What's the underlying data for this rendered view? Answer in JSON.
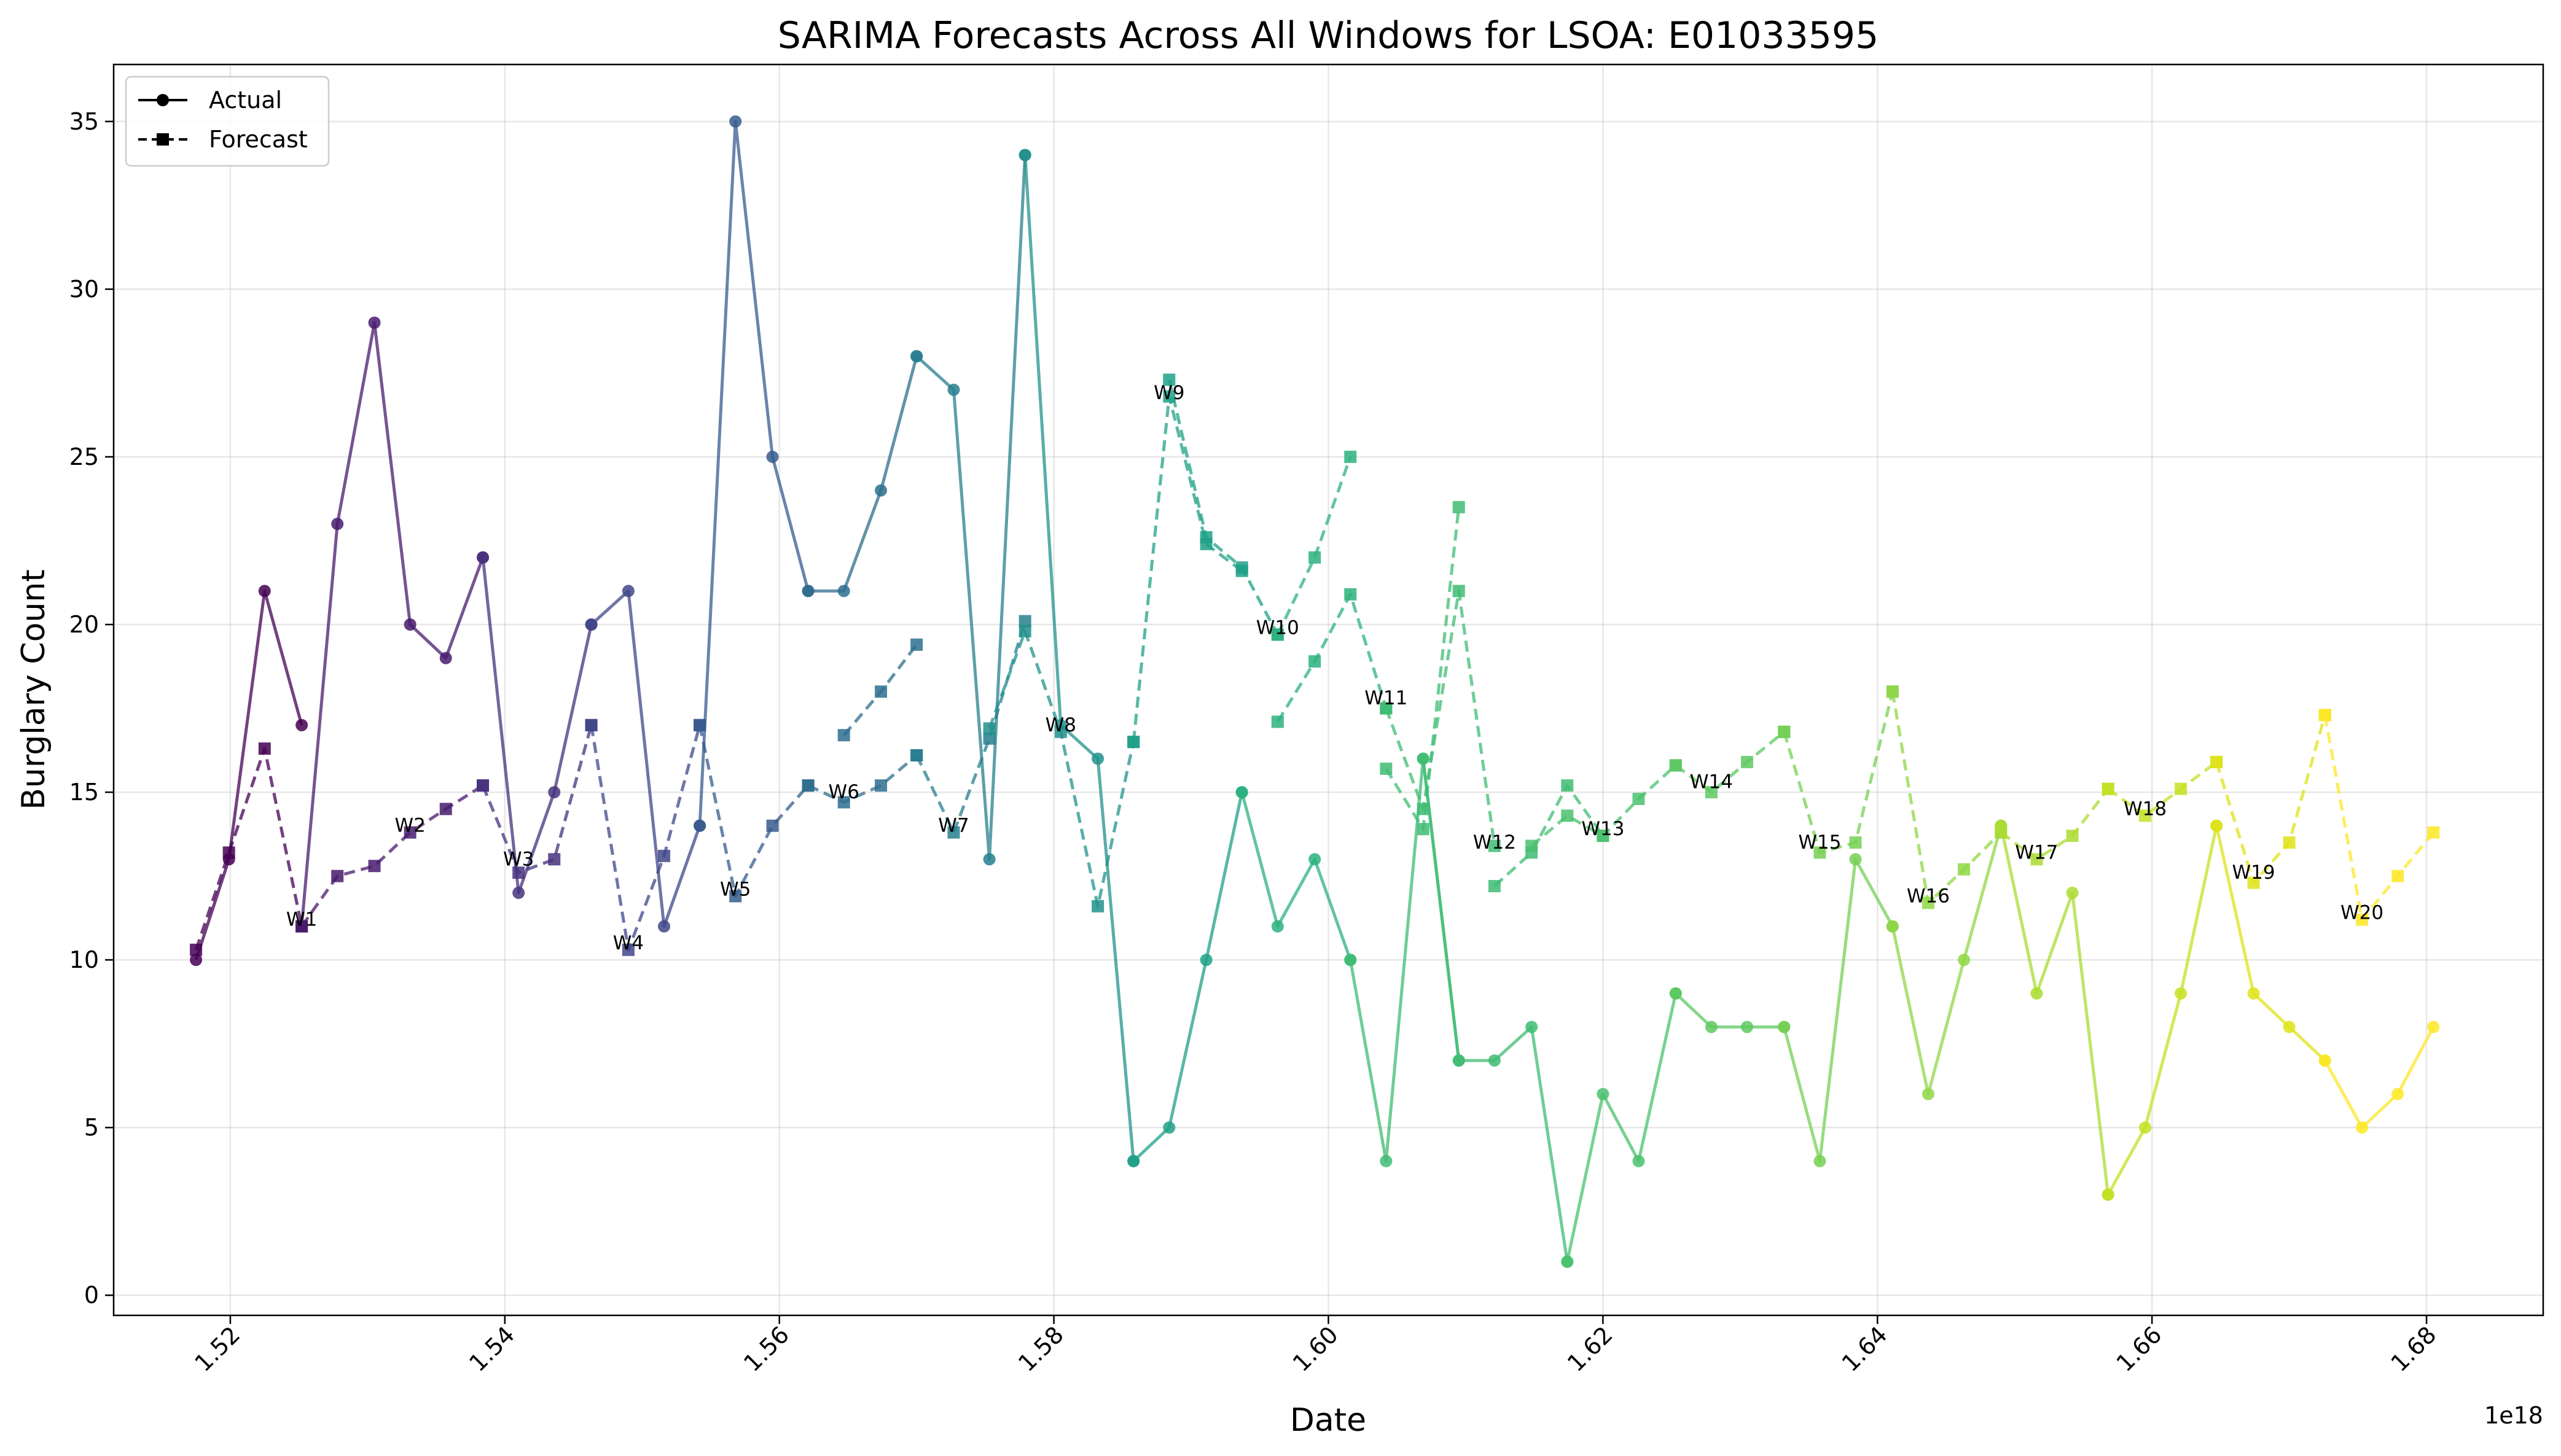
{
  "chart_data": {
    "type": "line",
    "title": "SARIMA Forecasts Across All Windows for LSOA: E01033595",
    "xlabel": "Date",
    "ylabel": "Burglary Count",
    "x_offset_text": "1e18",
    "xlim": [
      1.5115,
      1.6885
    ],
    "ylim": [
      -0.6,
      36.7
    ],
    "x_ticks": [
      1.52,
      1.54,
      1.56,
      1.58,
      1.6,
      1.62,
      1.64,
      1.66,
      1.68
    ],
    "x_tick_labels": [
      "1.52",
      "1.54",
      "1.56",
      "1.58",
      "1.60",
      "1.62",
      "1.64",
      "1.66",
      "1.68"
    ],
    "y_ticks": [
      0,
      5,
      10,
      15,
      20,
      25,
      30,
      35
    ],
    "y_tick_labels": [
      "0",
      "5",
      "10",
      "15",
      "20",
      "25",
      "30",
      "35"
    ],
    "grid": true,
    "legend": {
      "position": "top-left",
      "entries": [
        {
          "label": "Actual",
          "style": "solid",
          "marker": "circle"
        },
        {
          "label": "Forecast",
          "style": "dashed",
          "marker": "square"
        }
      ]
    },
    "series": [
      {
        "name": "W1",
        "color": "#440154",
        "actual": {
          "x": [
            1.5175,
            1.5199,
            1.5225,
            1.5252
          ],
          "y": [
            10,
            13,
            21,
            17
          ]
        },
        "forecast": {
          "x": [
            1.5175,
            1.5199,
            1.5225,
            1.5252
          ],
          "y": [
            10.3,
            13.2,
            16.3,
            11.0
          ]
        },
        "label": {
          "text": "W1",
          "x": 1.5252,
          "y": 11.2
        }
      },
      {
        "name": "W2",
        "color": "#481b6d",
        "actual": {
          "x": [
            1.5252,
            1.5278,
            1.5305,
            1.5331,
            1.5357,
            1.5384
          ],
          "y": [
            11,
            23,
            29,
            20,
            19,
            22
          ]
        },
        "forecast": {
          "x": [
            1.5252,
            1.5278,
            1.5305,
            1.5331,
            1.5357,
            1.5384
          ],
          "y": [
            11.0,
            12.5,
            12.8,
            13.8,
            14.5,
            15.2
          ]
        },
        "label": {
          "text": "W2",
          "x": 1.5331,
          "y": 14.0
        }
      },
      {
        "name": "W3",
        "color": "#46327e",
        "actual": {
          "x": [
            1.5384,
            1.541,
            1.5436,
            1.5463
          ],
          "y": [
            22,
            12,
            15,
            20
          ]
        },
        "forecast": {
          "x": [
            1.5384,
            1.541,
            1.5436,
            1.5463
          ],
          "y": [
            15.2,
            12.6,
            13.0,
            17.0
          ]
        },
        "label": {
          "text": "W3",
          "x": 1.541,
          "y": 13.0
        }
      },
      {
        "name": "W4",
        "color": "#3f4788",
        "actual": {
          "x": [
            1.5463,
            1.549,
            1.5516,
            1.5542
          ],
          "y": [
            20,
            21,
            11,
            14
          ]
        },
        "forecast": {
          "x": [
            1.5463,
            1.549,
            1.5516,
            1.5542
          ],
          "y": [
            17.0,
            10.3,
            13.1,
            17.0
          ]
        },
        "label": {
          "text": "W4",
          "x": 1.549,
          "y": 10.5
        }
      },
      {
        "name": "W5",
        "color": "#365c8d",
        "actual": {
          "x": [
            1.5542,
            1.5568,
            1.5595,
            1.5621
          ],
          "y": [
            14,
            35,
            25,
            21
          ]
        },
        "forecast": {
          "x": [
            1.5542,
            1.5568,
            1.5595,
            1.5621
          ],
          "y": [
            17.0,
            11.9,
            14.0,
            15.2
          ]
        },
        "label": {
          "text": "W5",
          "x": 1.5568,
          "y": 12.1
        }
      },
      {
        "name": "W6",
        "color": "#2e6e8e",
        "actual": {
          "x": [
            1.5621,
            1.5647,
            1.5674,
            1.57
          ],
          "y": [
            21,
            21,
            24,
            28
          ]
        },
        "forecast": {
          "x": [
            1.5647,
            1.5674,
            1.57
          ],
          "y": [
            16.7,
            18.0,
            19.4
          ]
        },
        "forecast2": {
          "x": [
            1.5621,
            1.5647,
            1.5674,
            1.57
          ],
          "y": [
            15.2,
            14.7,
            15.2,
            16.1
          ]
        },
        "label": {
          "text": "W6",
          "x": 1.5647,
          "y": 15.0
        }
      },
      {
        "name": "W7",
        "color": "#277f8e",
        "actual": {
          "x": [
            1.57,
            1.5727,
            1.5753,
            1.5779
          ],
          "y": [
            28,
            27,
            13,
            34
          ]
        },
        "forecast": {
          "x": [
            1.57,
            1.5727,
            1.5753,
            1.5779
          ],
          "y": [
            16.1,
            13.8,
            16.6,
            20.1
          ]
        },
        "label": {
          "text": "W7",
          "x": 1.5727,
          "y": 14.0
        }
      },
      {
        "name": "W8",
        "color": "#21918c",
        "actual": {
          "x": [
            1.5779,
            1.5805,
            1.5832,
            1.5858
          ],
          "y": [
            34,
            17,
            16,
            4
          ]
        },
        "forecast": {
          "x": [
            1.5753,
            1.5779,
            1.5805,
            1.5832,
            1.5858
          ],
          "y": [
            16.9,
            19.8,
            16.8,
            11.6,
            16.5
          ]
        },
        "label": {
          "text": "W8",
          "x": 1.5805,
          "y": 17.0
        }
      },
      {
        "name": "W9",
        "color": "#1fa187",
        "actual": {
          "x": [
            1.5858,
            1.5884,
            1.5911,
            1.5937
          ],
          "y": [
            4,
            5,
            10,
            15
          ]
        },
        "forecast": {
          "x": [
            1.5858,
            1.5884,
            1.5911,
            1.5937
          ],
          "y": [
            16.5,
            26.8,
            22.4,
            21.6
          ]
        },
        "forecast2": {
          "x": [
            1.5884,
            1.5911,
            1.5937,
            1.5963
          ],
          "y": [
            27.3,
            22.6,
            21.7,
            19.7
          ]
        },
        "label": {
          "text": "W9",
          "x": 1.5884,
          "y": 26.9
        }
      },
      {
        "name": "W10",
        "color": "#2db27d",
        "actual": {
          "x": [
            1.5937,
            1.5963,
            1.599,
            1.6016
          ],
          "y": [
            15,
            11,
            13,
            10
          ]
        },
        "forecast": {
          "x": [
            1.5963,
            1.599,
            1.6016
          ],
          "y": [
            19.7,
            22.0,
            25.0
          ]
        },
        "forecast2": {
          "x": [
            1.5963,
            1.599,
            1.6016,
            1.6042
          ],
          "y": [
            17.1,
            18.9,
            20.9,
            17.5
          ]
        },
        "label": {
          "text": "W10",
          "x": 1.5963,
          "y": 19.9
        }
      },
      {
        "name": "W11",
        "color": "#3fbc73",
        "actual": {
          "x": [
            1.6016,
            1.6042,
            1.6069,
            1.6095
          ],
          "y": [
            10,
            4,
            16,
            7
          ]
        },
        "forecast": {
          "x": [
            1.6042,
            1.6069,
            1.6095
          ],
          "y": [
            15.7,
            13.9,
            23.5
          ]
        },
        "forecast2": {
          "x": [
            1.6042,
            1.6069,
            1.6095,
            1.6121
          ],
          "y": [
            17.5,
            14.5,
            21.0,
            13.4
          ]
        },
        "label": {
          "text": "W11",
          "x": 1.6042,
          "y": 17.8
        }
      },
      {
        "name": "W12",
        "color": "#3fbc73",
        "actual": {
          "x": [
            1.6069,
            1.6095,
            1.6121,
            1.6148,
            1.6174
          ],
          "y": [
            16,
            7,
            7,
            8,
            1
          ]
        },
        "forecast": {
          "x": [
            1.6121,
            1.6148,
            1.6174,
            1.62
          ],
          "y": [
            12.2,
            13.2,
            15.2,
            13.7
          ]
        },
        "label": {
          "text": "W12",
          "x": 1.6121,
          "y": 13.5
        }
      },
      {
        "name": "W13",
        "color": "#4ac16d",
        "actual": {
          "x": [
            1.6174,
            1.62,
            1.6226,
            1.6253
          ],
          "y": [
            1,
            6,
            4,
            9
          ]
        },
        "forecast": {
          "x": [
            1.6148,
            1.6174,
            1.62,
            1.6226,
            1.6253
          ],
          "y": [
            13.4,
            14.3,
            13.7,
            14.8,
            15.8
          ]
        },
        "label": {
          "text": "W13",
          "x": 1.62,
          "y": 13.9
        }
      },
      {
        "name": "W14",
        "color": "#5ec962",
        "actual": {
          "x": [
            1.6253,
            1.6279,
            1.6305,
            1.6332
          ],
          "y": [
            9,
            8,
            8,
            8
          ]
        },
        "forecast": {
          "x": [
            1.6253,
            1.6279,
            1.6305,
            1.6332
          ],
          "y": [
            15.8,
            15.0,
            15.9,
            16.8
          ]
        },
        "label": {
          "text": "W14",
          "x": 1.6279,
          "y": 15.3
        }
      },
      {
        "name": "W15",
        "color": "#75d054",
        "actual": {
          "x": [
            1.6332,
            1.6358,
            1.6384,
            1.6411
          ],
          "y": [
            8,
            4,
            13,
            11
          ]
        },
        "forecast": {
          "x": [
            1.6332,
            1.6358,
            1.6384,
            1.6411
          ],
          "y": [
            16.8,
            13.2,
            13.5,
            18.0
          ]
        },
        "label": {
          "text": "W15",
          "x": 1.6358,
          "y": 13.5
        }
      },
      {
        "name": "W16",
        "color": "#8fd744",
        "actual": {
          "x": [
            1.6411,
            1.6437,
            1.6463,
            1.649
          ],
          "y": [
            11,
            6,
            10,
            14
          ]
        },
        "forecast": {
          "x": [
            1.6411,
            1.6437,
            1.6463,
            1.649
          ],
          "y": [
            18.0,
            11.7,
            12.7,
            13.8
          ]
        },
        "label": {
          "text": "W16",
          "x": 1.6437,
          "y": 11.9
        }
      },
      {
        "name": "W17",
        "color": "#aadc32",
        "actual": {
          "x": [
            1.649,
            1.6516,
            1.6542,
            1.6568
          ],
          "y": [
            14,
            9,
            12,
            3
          ]
        },
        "forecast": {
          "x": [
            1.649,
            1.6516,
            1.6542,
            1.6568
          ],
          "y": [
            13.8,
            13.0,
            13.7,
            15.1
          ]
        },
        "label": {
          "text": "W17",
          "x": 1.6516,
          "y": 13.2
        }
      },
      {
        "name": "W18",
        "color": "#c5e021",
        "actual": {
          "x": [
            1.6568,
            1.6595,
            1.6621,
            1.6647
          ],
          "y": [
            3,
            5,
            9,
            14
          ]
        },
        "forecast": {
          "x": [
            1.6568,
            1.6595,
            1.6621,
            1.6647
          ],
          "y": [
            15.1,
            14.3,
            15.1,
            15.9
          ]
        },
        "label": {
          "text": "W18",
          "x": 1.6595,
          "y": 14.5
        }
      },
      {
        "name": "W19",
        "color": "#dfe318",
        "actual": {
          "x": [
            1.6647,
            1.6674,
            1.67,
            1.6726
          ],
          "y": [
            14,
            9,
            8,
            7
          ]
        },
        "forecast": {
          "x": [
            1.6647,
            1.6674,
            1.67,
            1.6726
          ],
          "y": [
            15.9,
            12.3,
            13.5,
            17.3
          ]
        },
        "label": {
          "text": "W19",
          "x": 1.6674,
          "y": 12.6
        }
      },
      {
        "name": "W20",
        "color": "#fde725",
        "actual": {
          "x": [
            1.6726,
            1.6753,
            1.6779,
            1.6805
          ],
          "y": [
            7,
            5,
            6,
            8
          ]
        },
        "forecast": {
          "x": [
            1.6726,
            1.6753,
            1.6779,
            1.6805
          ],
          "y": [
            17.3,
            11.2,
            12.5,
            13.8
          ]
        },
        "label": {
          "text": "W20",
          "x": 1.6753,
          "y": 11.4
        }
      }
    ]
  }
}
